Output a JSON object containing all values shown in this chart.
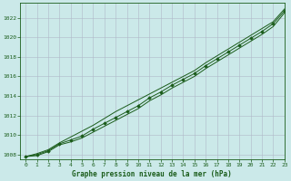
{
  "title": "Graphe pression niveau de la mer (hPa)",
  "bg_color": "#cbe9e9",
  "plot_bg_color": "#cbe9e9",
  "line_color": "#1a5c1a",
  "marker_color": "#1a5c1a",
  "grid_color": "#b0b8c8",
  "text_color": "#1a5c1a",
  "xlim": [
    -0.5,
    23
  ],
  "ylim": [
    1007.5,
    1023.5
  ],
  "yticks": [
    1008,
    1010,
    1012,
    1014,
    1016,
    1018,
    1020,
    1022
  ],
  "xticks": [
    0,
    1,
    2,
    3,
    4,
    5,
    6,
    7,
    8,
    9,
    10,
    11,
    12,
    13,
    14,
    15,
    16,
    17,
    18,
    19,
    20,
    21,
    22,
    23
  ],
  "x": [
    0,
    1,
    2,
    3,
    4,
    5,
    6,
    7,
    8,
    9,
    10,
    11,
    12,
    13,
    14,
    15,
    16,
    17,
    18,
    19,
    20,
    21,
    22,
    23
  ],
  "y_main": [
    1007.8,
    1008.0,
    1008.4,
    1009.1,
    1009.5,
    1009.9,
    1010.6,
    1011.2,
    1011.8,
    1012.4,
    1013.0,
    1013.8,
    1014.4,
    1015.1,
    1015.7,
    1016.3,
    1017.1,
    1017.8,
    1018.5,
    1019.2,
    1019.9,
    1020.6,
    1021.4,
    1022.7
  ],
  "y_upper": [
    1007.8,
    1008.1,
    1008.5,
    1009.2,
    1009.8,
    1010.4,
    1011.0,
    1011.7,
    1012.4,
    1013.0,
    1013.6,
    1014.2,
    1014.8,
    1015.4,
    1016.0,
    1016.6,
    1017.4,
    1018.1,
    1018.8,
    1019.5,
    1020.2,
    1020.9,
    1021.6,
    1022.9
  ],
  "y_lower": [
    1007.8,
    1007.9,
    1008.3,
    1009.0,
    1009.3,
    1009.7,
    1010.3,
    1010.9,
    1011.5,
    1012.1,
    1012.7,
    1013.5,
    1014.1,
    1014.8,
    1015.4,
    1016.0,
    1016.8,
    1017.5,
    1018.2,
    1018.9,
    1019.6,
    1020.3,
    1021.1,
    1022.5
  ]
}
